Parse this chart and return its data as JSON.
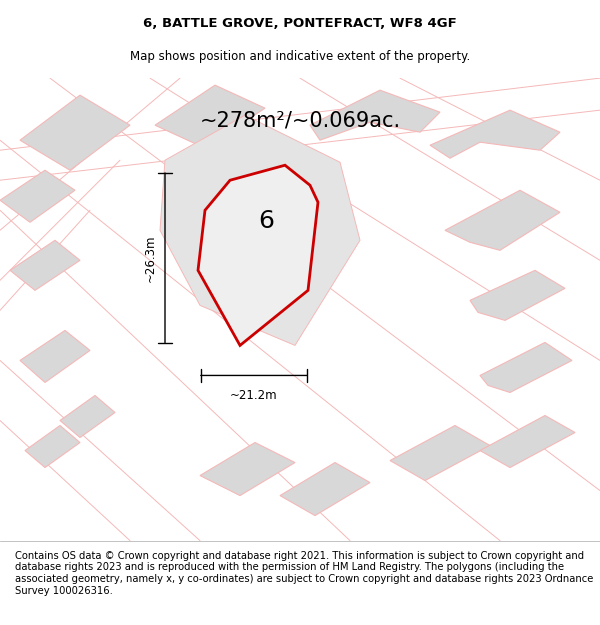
{
  "title_line1": "6, BATTLE GROVE, PONTEFRACT, WF8 4GF",
  "title_line2": "Map shows position and indicative extent of the property.",
  "area_text": "~278m²/~0.069ac.",
  "width_label": "~21.2m",
  "height_label": "~26.3m",
  "property_number": "6",
  "footer_text": "Contains OS data © Crown copyright and database right 2021. This information is subject to Crown copyright and database rights 2023 and is reproduced with the permission of HM Land Registry. The polygons (including the associated geometry, namely x, y co-ordinates) are subject to Crown copyright and database rights 2023 Ordnance Survey 100026316.",
  "map_bg": "#ffffff",
  "property_fill": "#e8e8e8",
  "property_edge": "#cc0000",
  "building_fill": "#d8d8d8",
  "building_edge": "#f5b8b8",
  "road_color": "#f5b8b8",
  "dim_color": "#000000",
  "title_fontsize": 9.5,
  "subtitle_fontsize": 8.5,
  "area_fontsize": 15,
  "label_fontsize": 8.5,
  "number_fontsize": 18,
  "footer_fontsize": 7.2,
  "title_bold": true
}
